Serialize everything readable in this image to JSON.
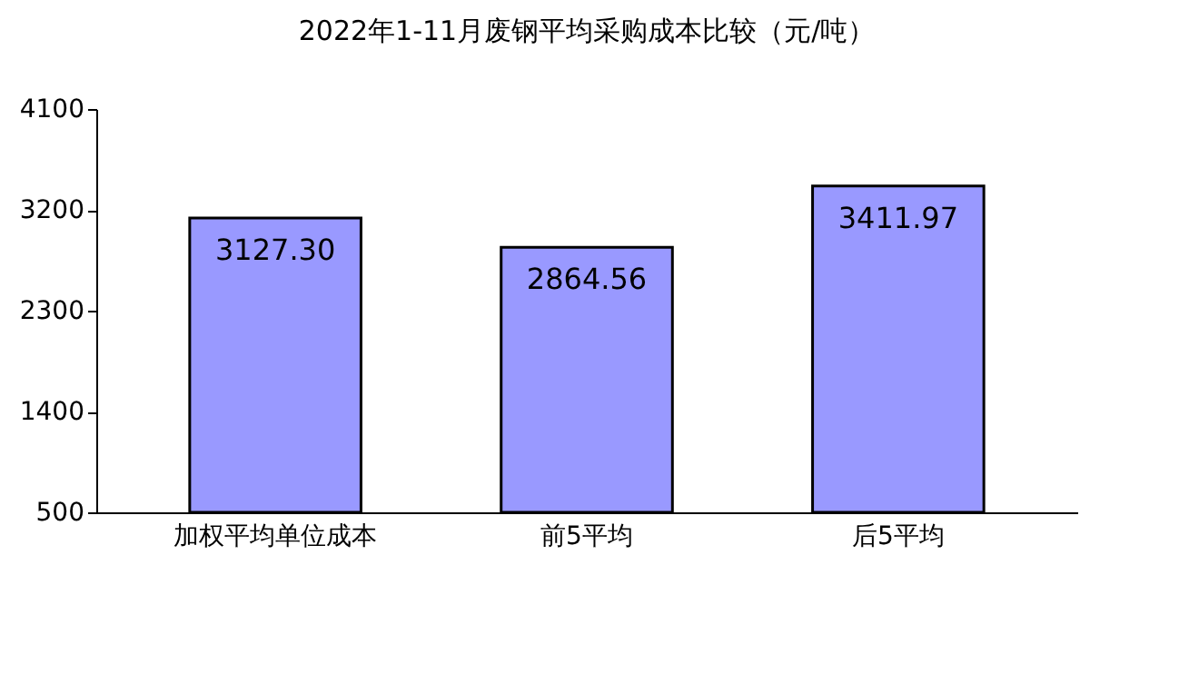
{
  "chart_data": {
    "type": "bar",
    "title": "2022年1-11月废钢平均采购成本比较（元/吨）",
    "categories": [
      "加权平均单位成本",
      "前5平均",
      "后5平均"
    ],
    "values": [
      3127.3,
      2864.56,
      3411.97
    ],
    "value_labels": [
      "3127.30",
      "2864.56",
      "3411.97"
    ],
    "color": "#9999ff",
    "ylim": [
      500,
      4100
    ],
    "yticks": [
      500,
      1400,
      2300,
      3200,
      4100
    ],
    "grid": false
  }
}
